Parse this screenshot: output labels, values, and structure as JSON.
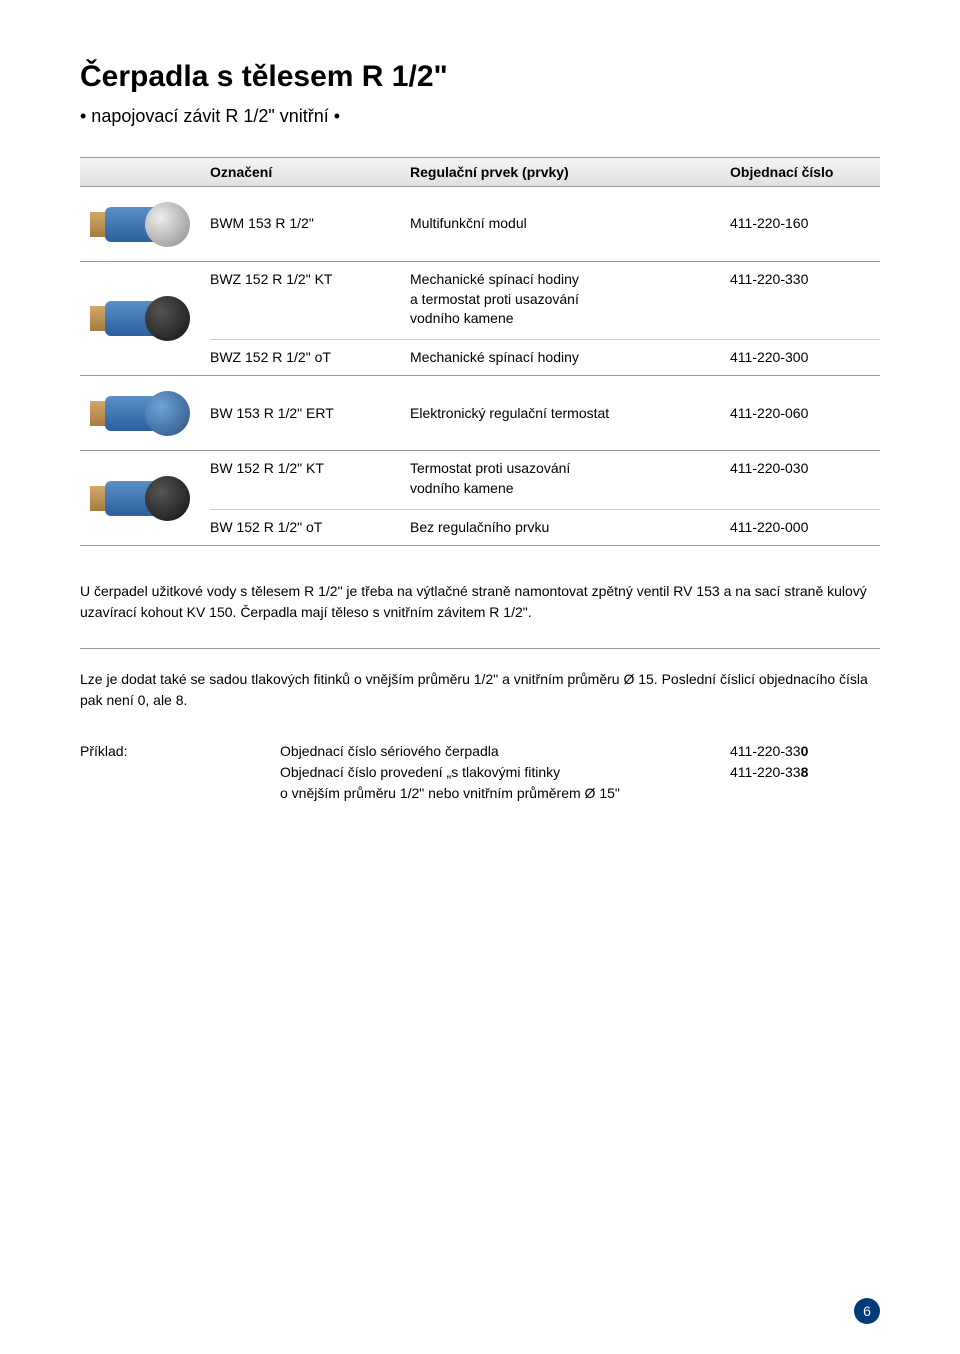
{
  "title": "Čerpadla s tělesem R 1/2\"",
  "subtitle": "• napojovací závit R 1/2\" vnitřní •",
  "header": {
    "col_name": "Označení",
    "col_desc": "Regulační prvek (prvky)",
    "col_code": "Objednací číslo"
  },
  "rows": [
    {
      "img_motor": "silver",
      "lines": [
        {
          "name": "BWM 153 R 1/2\"",
          "desc": "Multifunkční modul",
          "code": "411-220-160"
        }
      ]
    },
    {
      "img_motor": "dark",
      "lines": [
        {
          "name": "BWZ 152 R 1/2\" KT",
          "desc": "Mechanické spínací hodiny\na termostat proti usazování\nvodního kamene",
          "code": "411-220-330",
          "border": true
        },
        {
          "name": "BWZ 152 R 1/2\" oT",
          "desc": "Mechanické spínací hodiny",
          "code": "411-220-300"
        }
      ]
    },
    {
      "img_motor": "blue",
      "lines": [
        {
          "name": "BW 153 R 1/2\" ERT",
          "desc": "Elektronický regulační termostat",
          "code": "411-220-060"
        }
      ]
    },
    {
      "img_motor": "dark",
      "lines": [
        {
          "name": "BW 152 R 1/2\" KT",
          "desc": "Termostat proti usazování\nvodního kamene",
          "code": "411-220-030",
          "border": true
        },
        {
          "name": "BW 152 R 1/2\" oT",
          "desc": "Bez regulačního prvku",
          "code": "411-220-000"
        }
      ]
    }
  ],
  "bodytext1": "U čerpadel užitkové vody s tělesem R 1/2\" je třeba na výtlačné straně namontovat zpětný ventil RV 153 a na sací straně kulový uzavírací kohout KV 150. Čerpadla mají těleso s vnitřním závitem R 1/2\".",
  "bodytext2": "Lze je dodat také se sadou tlakových fitinků o vnějším průměru 1/2\" a vnitřním průměru Ø 15. Poslední číslicí objednacího čísla pak není 0, ale 8.",
  "example": {
    "label": "Příklad:",
    "lines": [
      {
        "desc": "Objednací číslo sériového čerpadla",
        "code_prefix": "411-220-33",
        "code_bold": "0"
      },
      {
        "desc": "Objednací číslo provedení „s tlakovými fitinky\no vnějším průměru 1/2\" nebo vnitřním průměrem Ø 15\"",
        "code_prefix": "411-220-33",
        "code_bold": "8"
      }
    ]
  },
  "pagenum": "6"
}
